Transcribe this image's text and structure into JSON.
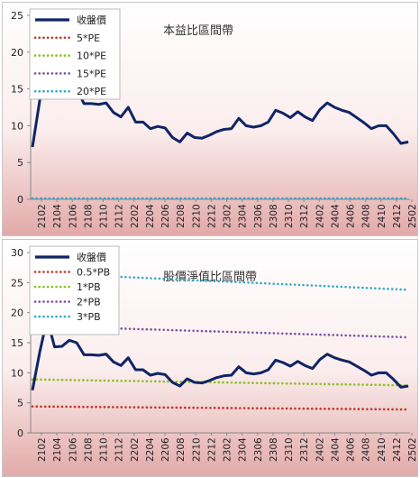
{
  "chart_data": [
    {
      "type": "line",
      "title": "本益比區間帶",
      "ylim": [
        0,
        25
      ],
      "yticks": [
        0,
        5,
        10,
        15,
        20,
        25
      ],
      "xtick_labels": [
        "2102",
        "2104",
        "2106",
        "2108",
        "2110",
        "2112",
        "2202",
        "2204",
        "2206",
        "2208",
        "2210",
        "2212",
        "2302",
        "2304",
        "2306",
        "2308",
        "2310",
        "2312",
        "2402",
        "2404",
        "2406",
        "2408",
        "2410",
        "2412",
        "2502"
      ],
      "grid": false,
      "legend_position": "top-left",
      "series": [
        {
          "name": "收盤價",
          "color": "#0f2466",
          "style": "solid",
          "values": [
            7.1,
            13.5,
            19.0,
            14.3,
            14.4,
            15.4,
            15.0,
            13.0,
            13.0,
            12.9,
            13.1,
            11.8,
            11.2,
            12.5,
            10.5,
            10.5,
            9.6,
            9.9,
            9.7,
            8.4,
            7.8,
            9.0,
            8.4,
            8.3,
            8.7,
            9.2,
            9.5,
            9.6,
            11.0,
            10.0,
            9.8,
            10.0,
            10.5,
            12.1,
            11.7,
            11.1,
            11.9,
            11.2,
            10.7,
            12.2,
            13.1,
            12.5,
            12.1,
            11.8,
            11.1,
            10.4,
            9.6,
            10.0,
            10.0,
            8.9,
            7.6,
            7.8
          ]
        },
        {
          "name": "5*PE",
          "color": "#c0392b",
          "style": "dotted",
          "values": [
            0.1,
            0.1,
            0.1,
            0.1,
            0.1,
            0.1,
            0.1,
            0.1,
            0.1,
            0.1,
            0.1,
            0.1,
            0.1,
            0.1,
            0.1,
            0.1,
            0.1,
            0.1,
            0.1,
            0.1,
            0.1,
            0.1,
            0.1,
            0.1,
            0.1,
            0.1,
            0.1,
            0.1,
            0.1,
            0.1,
            0.1,
            0.1,
            0.1,
            0.1,
            0.1,
            0.1,
            0.1,
            0.1,
            0.1,
            0.1,
            0.1,
            0.1,
            0.1,
            0.1,
            0.1,
            0.1,
            0.1,
            0.1,
            0.1,
            0.1,
            0.1,
            0.1
          ]
        },
        {
          "name": "10*PE",
          "color": "#8cbf26",
          "style": "dotted",
          "values": [
            0.1,
            0.1,
            0.1,
            0.1,
            0.1,
            0.1,
            0.1,
            0.1,
            0.1,
            0.1,
            0.1,
            0.1,
            0.1,
            0.1,
            0.1,
            0.1,
            0.1,
            0.1,
            0.1,
            0.1,
            0.1,
            0.1,
            0.1,
            0.1,
            0.1,
            0.1,
            0.1,
            0.1,
            0.1,
            0.1,
            0.1,
            0.1,
            0.1,
            0.1,
            0.1,
            0.1,
            0.1,
            0.1,
            0.1,
            0.1,
            0.1,
            0.1,
            0.1,
            0.1,
            0.1,
            0.1,
            0.1,
            0.1,
            0.1,
            0.1,
            0.1,
            0.1
          ]
        },
        {
          "name": "15*PE",
          "color": "#7b4fa3",
          "style": "dotted",
          "values": [
            0.1,
            0.1,
            0.1,
            0.1,
            0.1,
            0.1,
            0.1,
            0.1,
            0.1,
            0.1,
            0.1,
            0.1,
            0.1,
            0.1,
            0.1,
            0.1,
            0.1,
            0.1,
            0.1,
            0.1,
            0.1,
            0.1,
            0.1,
            0.1,
            0.1,
            0.1,
            0.1,
            0.1,
            0.1,
            0.1,
            0.1,
            0.1,
            0.1,
            0.1,
            0.1,
            0.1,
            0.1,
            0.1,
            0.1,
            0.1,
            0.1,
            0.1,
            0.1,
            0.1,
            0.1,
            0.1,
            0.1,
            0.1,
            0.1,
            0.1,
            0.1,
            0.1
          ]
        },
        {
          "name": "20*PE",
          "color": "#33a9c9",
          "style": "dotted",
          "values": [
            0.1,
            0.1,
            0.1,
            0.1,
            0.1,
            0.1,
            0.1,
            0.1,
            0.1,
            0.1,
            0.1,
            0.1,
            0.1,
            0.1,
            0.1,
            0.1,
            0.1,
            0.1,
            0.1,
            0.1,
            0.1,
            0.1,
            0.1,
            0.1,
            0.1,
            0.1,
            0.1,
            0.1,
            0.1,
            0.1,
            0.1,
            0.1,
            0.1,
            0.1,
            0.1,
            0.1,
            0.1,
            0.1,
            0.1,
            0.1,
            0.1,
            0.1,
            0.1,
            0.1,
            0.1,
            0.1,
            0.1,
            0.1,
            0.1,
            0.1,
            0.1,
            0.1
          ]
        }
      ]
    },
    {
      "type": "line",
      "title": "股價淨值比區間帶",
      "ylim": [
        0,
        30
      ],
      "yticks": [
        0,
        5,
        10,
        15,
        20,
        25,
        30
      ],
      "xtick_labels": [
        "2102",
        "2104",
        "2106",
        "2108",
        "2110",
        "2112",
        "2202",
        "2204",
        "2206",
        "2208",
        "2210",
        "2212",
        "2302",
        "2304",
        "2306",
        "2308",
        "2310",
        "2312",
        "2402",
        "2404",
        "2406",
        "2408",
        "2410",
        "2412",
        "2502"
      ],
      "grid": false,
      "legend_position": "top-left",
      "series": [
        {
          "name": "收盤價",
          "color": "#0f2466",
          "style": "solid",
          "values": [
            7.1,
            13.5,
            19.0,
            14.3,
            14.4,
            15.4,
            15.0,
            13.0,
            13.0,
            12.9,
            13.1,
            11.8,
            11.2,
            12.5,
            10.5,
            10.5,
            9.6,
            9.9,
            9.7,
            8.4,
            7.8,
            9.0,
            8.4,
            8.3,
            8.7,
            9.2,
            9.5,
            9.6,
            11.0,
            10.0,
            9.8,
            10.0,
            10.5,
            12.1,
            11.7,
            11.1,
            11.9,
            11.2,
            10.7,
            12.2,
            13.1,
            12.5,
            12.1,
            11.8,
            11.1,
            10.4,
            9.6,
            10.0,
            10.0,
            8.9,
            7.6,
            7.8
          ]
        },
        {
          "name": "0.5*PB",
          "color": "#c0392b",
          "style": "dotted",
          "from": 4.4,
          "to": 3.9
        },
        {
          "name": "1*PB",
          "color": "#8cbf26",
          "style": "dotted",
          "from": 8.9,
          "to": 7.9
        },
        {
          "name": "2*PB",
          "color": "#7b4fa3",
          "style": "dotted",
          "from": 17.8,
          "to": 15.9
        },
        {
          "name": "3*PB",
          "color": "#33a9c9",
          "style": "dotted",
          "from": 26.6,
          "to": 23.8
        }
      ]
    }
  ]
}
